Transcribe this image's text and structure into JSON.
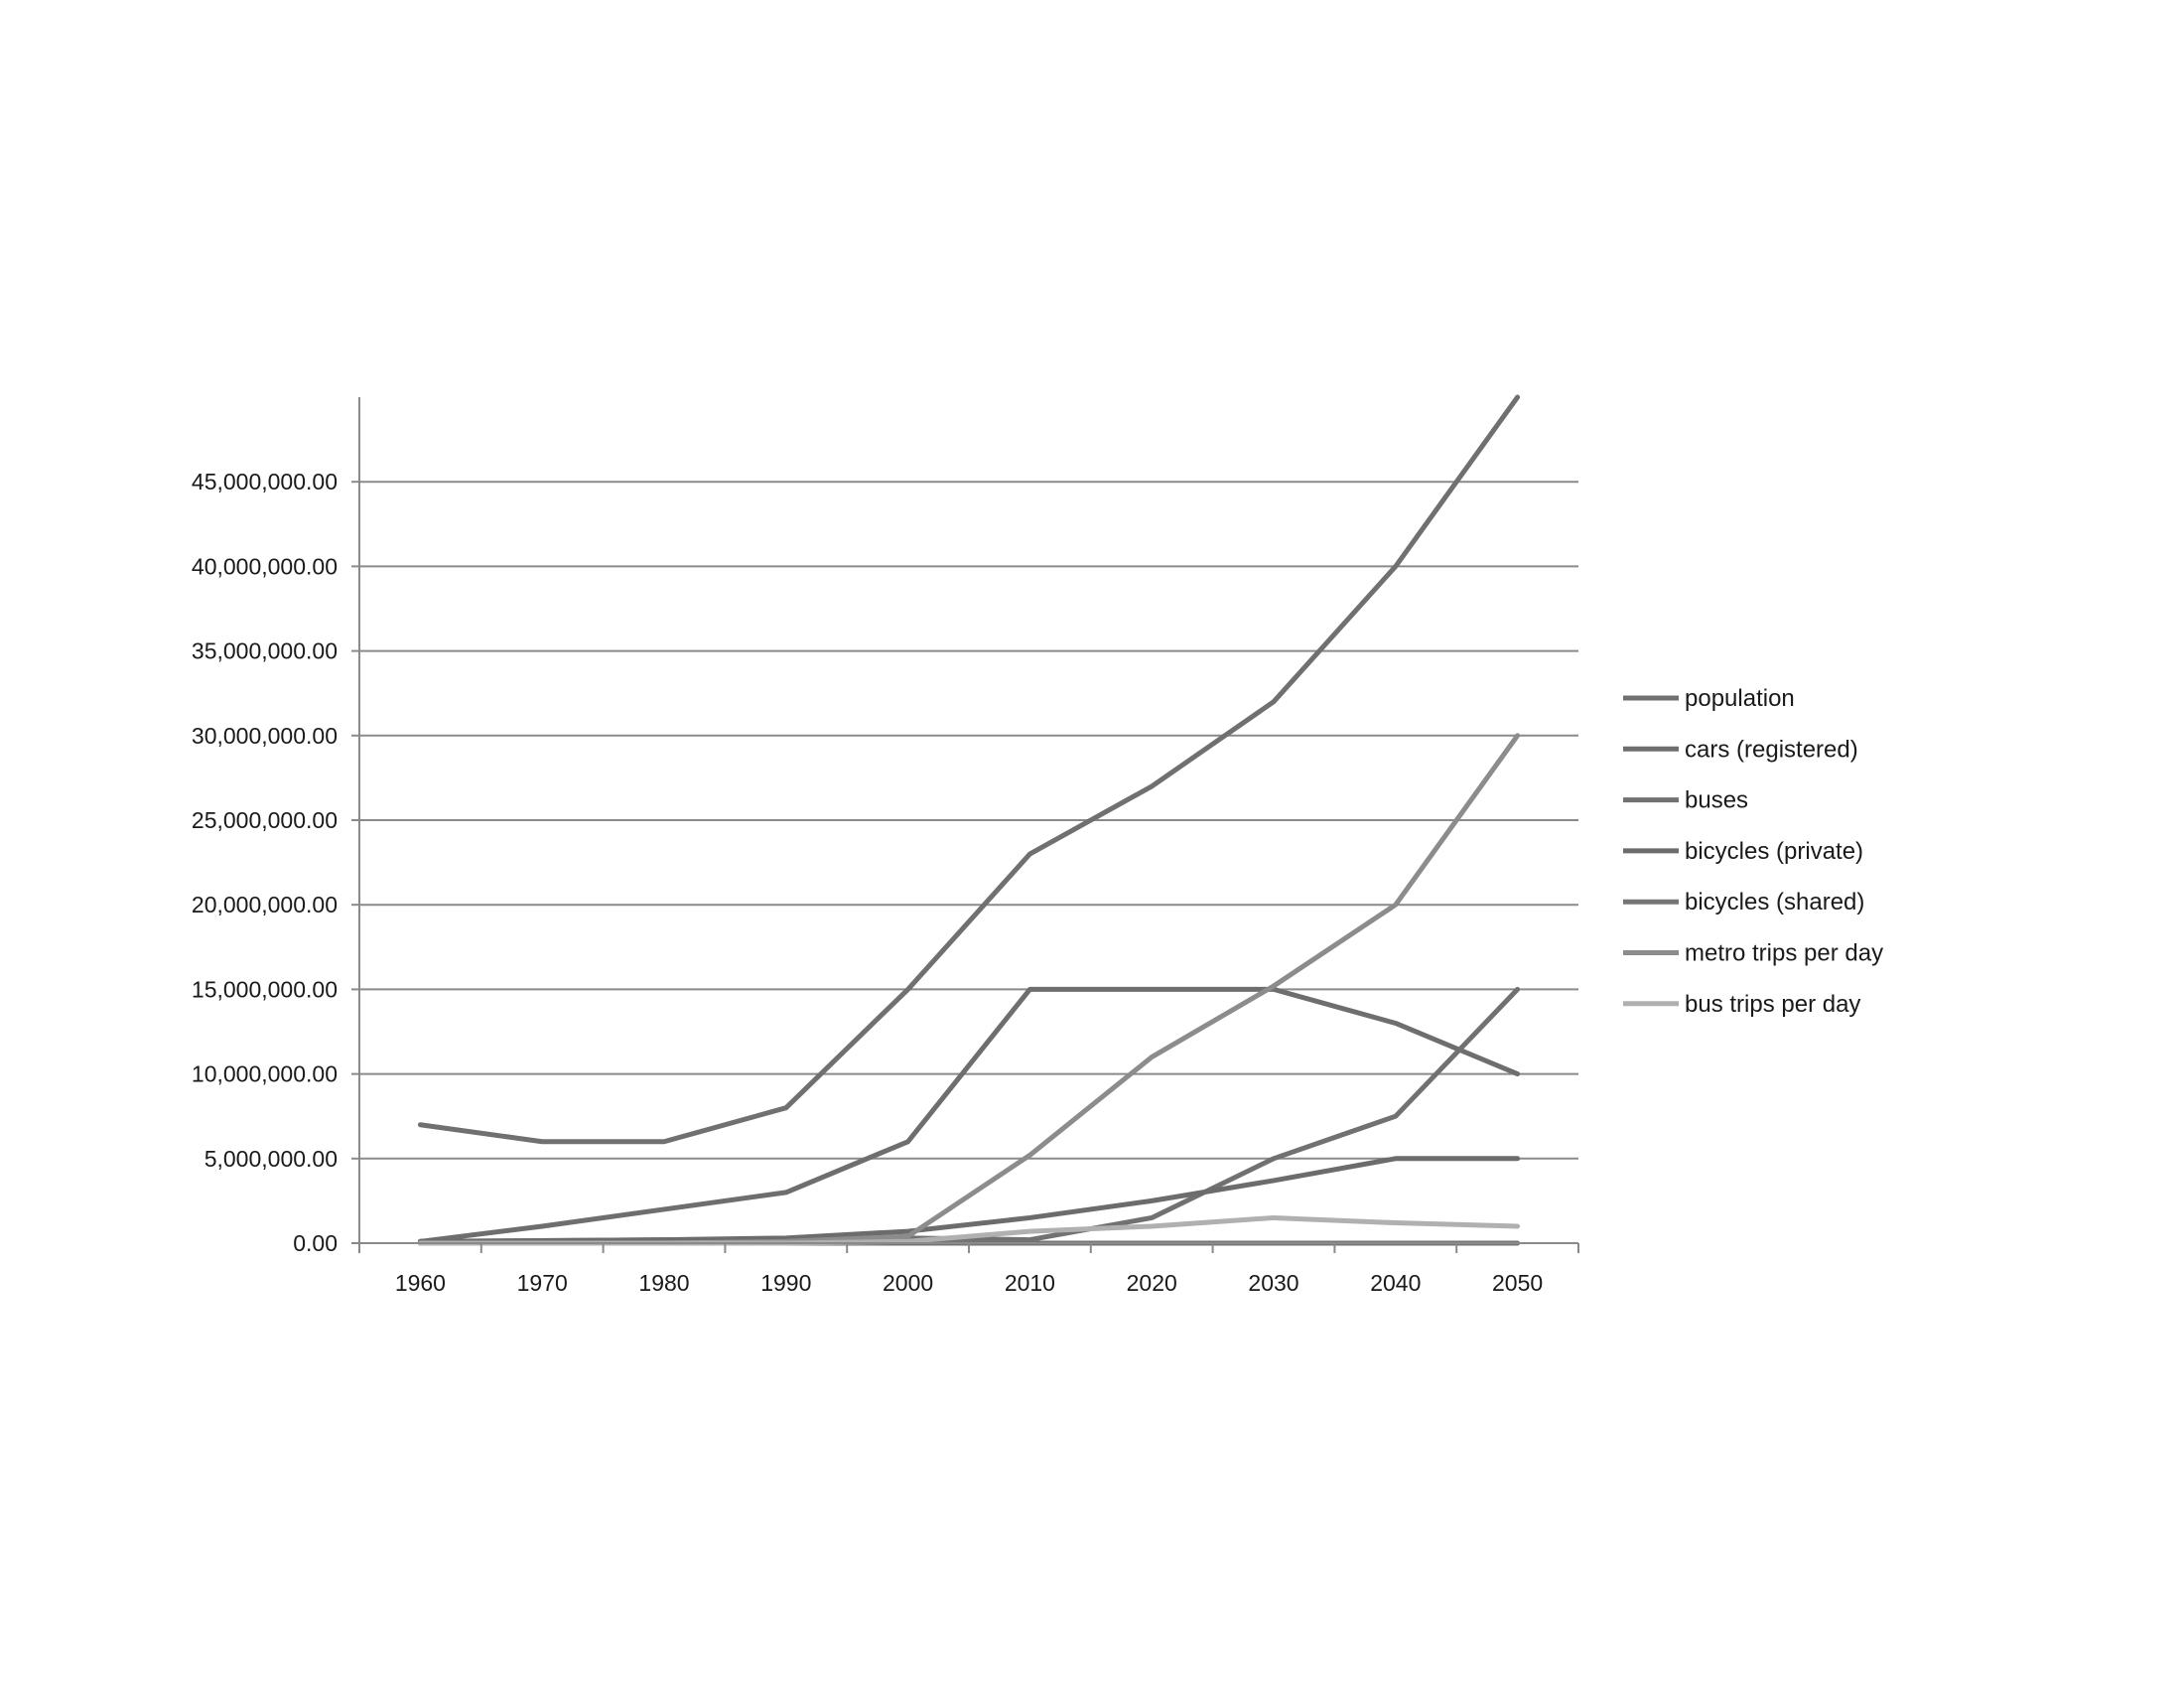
{
  "chart_data": {
    "type": "line",
    "title": "",
    "xlabel": "",
    "ylabel": "",
    "categories": [
      "1960",
      "1970",
      "1980",
      "1990",
      "2000",
      "2010",
      "2020",
      "2030",
      "2040",
      "2050"
    ],
    "ylim": [
      0,
      50000000
    ],
    "y_ticks": [
      0,
      5000000,
      10000000,
      15000000,
      20000000,
      25000000,
      30000000,
      35000000,
      40000000,
      45000000
    ],
    "y_tick_labels": [
      "0.00",
      "5,000,000.00",
      "10,000,000.00",
      "15,000,000.00",
      "20,000,000.00",
      "25,000,000.00",
      "30,000,000.00",
      "35,000,000.00",
      "40,000,000.00",
      "45,000,000.00"
    ],
    "grid": true,
    "legend_position": "right",
    "series": [
      {
        "name": "population",
        "color": "#707070",
        "values": [
          7000000,
          6000000,
          6000000,
          8000000,
          15000000,
          23000000,
          27000000,
          32000000,
          40000000,
          50000000
        ]
      },
      {
        "name": "cars (registered)",
        "color": "#6e6e6e",
        "values": [
          100000,
          1000000,
          2000000,
          3000000,
          6000000,
          15000000,
          15000000,
          15000000,
          13000000,
          10000000
        ]
      },
      {
        "name": "buses",
        "color": "#717171",
        "values": [
          100000,
          150000,
          200000,
          250000,
          300000,
          200000,
          1500000,
          5000000,
          7500000,
          15000000
        ]
      },
      {
        "name": "bicycles (private)",
        "color": "#6c6c6c",
        "values": [
          100000,
          150000,
          200000,
          300000,
          700000,
          1500000,
          2500000,
          3700000,
          5000000,
          5000000
        ]
      },
      {
        "name": "bicycles (shared)",
        "color": "#757575",
        "values": [
          0,
          0,
          0,
          0,
          0,
          0,
          0,
          0,
          0,
          0
        ]
      },
      {
        "name": "metro trips per day",
        "color": "#8c8c8c",
        "values": [
          0,
          0,
          0,
          100000,
          400000,
          5200000,
          11000000,
          15200000,
          20000000,
          30000000
        ]
      },
      {
        "name": "bus trips per day",
        "color": "#b0b0b0",
        "values": [
          0,
          0,
          0,
          0,
          100000,
          700000,
          1000000,
          1500000,
          1200000,
          1000000
        ]
      }
    ]
  }
}
